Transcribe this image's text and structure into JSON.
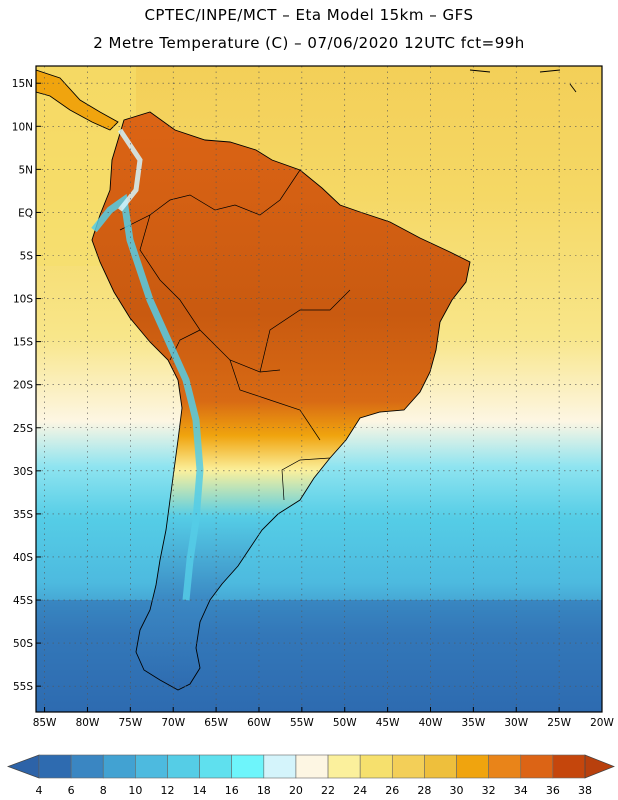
{
  "header": {
    "line1": "CPTEC/INPE/MCT –  Eta Model 15km – GFS",
    "line2": "2 Metre Temperature (C) – 07/06/2020 12UTC fct=99h"
  },
  "map": {
    "lon_range": [
      -86,
      -20
    ],
    "lat_range": [
      -58,
      17
    ],
    "lat_labels": [
      "15N",
      "10N",
      "5N",
      "EQ",
      "5S",
      "10S",
      "15S",
      "20S",
      "25S",
      "30S",
      "35S",
      "40S",
      "45S",
      "50S",
      "55S"
    ],
    "lat_values": [
      15,
      10,
      5,
      0,
      -5,
      -10,
      -15,
      -20,
      -25,
      -30,
      -35,
      -40,
      -45,
      -50,
      -55
    ],
    "lon_labels": [
      "85W",
      "80W",
      "75W",
      "70W",
      "65W",
      "60W",
      "55W",
      "50W",
      "45W",
      "40W",
      "35W",
      "30W",
      "25W",
      "20W"
    ],
    "lon_values": [
      -85,
      -80,
      -75,
      -70,
      -65,
      -60,
      -55,
      -50,
      -45,
      -40,
      -35,
      -30,
      -25,
      -20
    ]
  },
  "colorbar": {
    "levels": [
      "4",
      "6",
      "8",
      "10",
      "12",
      "14",
      "16",
      "18",
      "20",
      "22",
      "24",
      "26",
      "28",
      "30",
      "32",
      "34",
      "36",
      "38"
    ],
    "colors": [
      "#2e6bb0",
      "#3a86c2",
      "#42a2d2",
      "#4dbadf",
      "#55cde6",
      "#5fe0ee",
      "#6ef5fb",
      "#d4f4fb",
      "#fdf6e3",
      "#fbf09c",
      "#f6e06d",
      "#f3cf58",
      "#eebf3c",
      "#f0a40e",
      "#e98419",
      "#dc6415",
      "#c5460c"
    ],
    "under_color": "#2d63a8",
    "over_color": "#b8400d"
  },
  "colors": {
    "land_hot": "#c95a10",
    "ocean_warm": "#f3cf58"
  }
}
